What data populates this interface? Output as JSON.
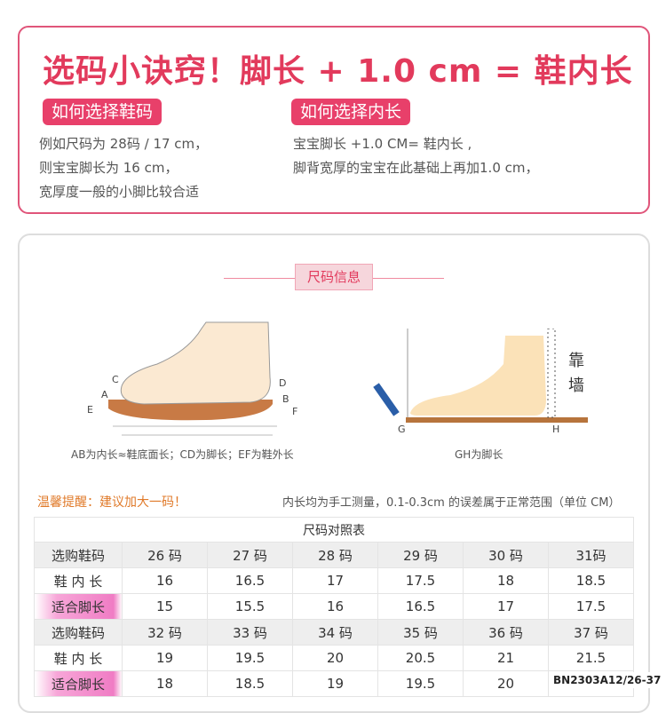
{
  "tips": {
    "headline": "选码小诀窍！脚长 + 1.0 cm = 鞋内长",
    "left": {
      "tag": "如何选择鞋码",
      "lines": [
        "例如尺码为 28码 / 17  cm，",
        "则宝宝脚长为  16   cm，",
        "宽厚度一般的小脚比较合适"
      ]
    },
    "right": {
      "tag": "如何选择内长",
      "lines": [
        "宝宝脚长 +1.0 CM= 鞋内长 ,",
        "脚背宽厚的宝宝在此基础上再加1.0 cm，"
      ]
    }
  },
  "size_info": {
    "section_title": "尺码信息",
    "left_diagram": {
      "points": [
        "A",
        "B",
        "C",
        "D",
        "E",
        "F"
      ],
      "caption": "AB为内长≈鞋底面长；CD为脚长；EF为鞋外长"
    },
    "right_diagram": {
      "points": [
        "G",
        "H"
      ],
      "wall_label": [
        "靠",
        "墙"
      ],
      "caption": "GH为脚长"
    }
  },
  "reminder": "温馨提醒：建议加大一码！",
  "measure_note": "内长均为手工测量，0.1-0.3cm 的误差属于正常范围（单位 CM）",
  "colors": {
    "accent": "#e23a5c",
    "highlight": "#f07cc4",
    "tip": "#e07a2a"
  },
  "table": {
    "title": "尺码对照表",
    "blocks": [
      {
        "rows": [
          {
            "label": "选购鞋码",
            "cells": [
              "26 码",
              "27 码",
              "28 码",
              "29 码",
              "30 码",
              "31码"
            ]
          },
          {
            "label": "鞋 内 长",
            "cells": [
              "16",
              "16.5",
              "17",
              "17.5",
              "18",
              "18.5"
            ]
          },
          {
            "label": "适合脚长",
            "cells": [
              "15",
              "15.5",
              "16",
              "16.5",
              "17",
              "17.5"
            ]
          }
        ]
      },
      {
        "rows": [
          {
            "label": "选购鞋码",
            "cells": [
              "32 码",
              "33 码",
              "34 码",
              "35 码",
              "36 码",
              "37 码"
            ]
          },
          {
            "label": "鞋 内 长",
            "cells": [
              "19",
              "19.5",
              "20",
              "20.5",
              "21",
              "21.5"
            ]
          },
          {
            "label": "适合脚长",
            "cells": [
              "18",
              "18.5",
              "19",
              "19.5",
              "20",
              ""
            ]
          }
        ]
      }
    ]
  },
  "product_code": "BN2303A12/26-37"
}
